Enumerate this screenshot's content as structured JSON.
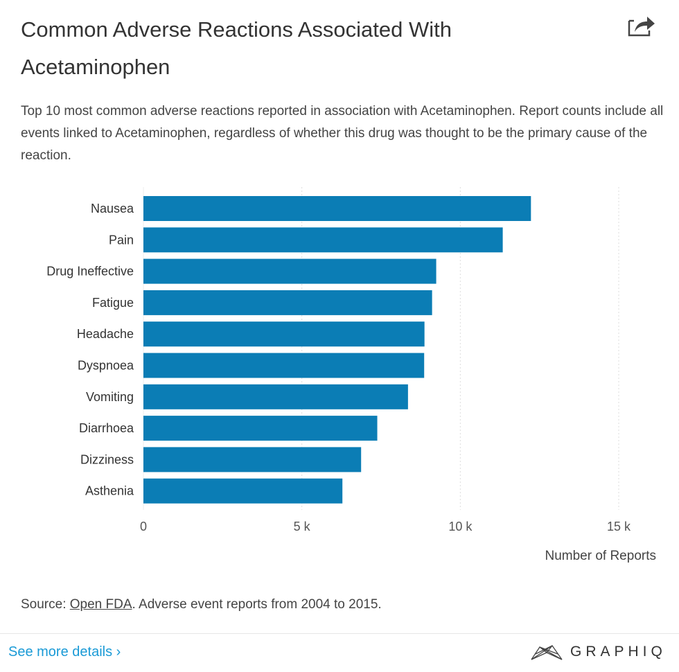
{
  "header": {
    "title": "Common Adverse Reactions Associated With Acetaminophen",
    "share_icon": "share-arrow-icon",
    "description": "Top 10 most common adverse reactions reported in association with Acetaminophen. Report counts include all events linked to Acetaminophen, regardless of whether this drug was thought to be the primary cause of the reaction."
  },
  "chart_data": {
    "type": "bar",
    "orientation": "horizontal",
    "categories": [
      "Nausea",
      "Pain",
      "Drug Ineffective",
      "Fatigue",
      "Headache",
      "Dyspnoea",
      "Vomiting",
      "Diarrhoea",
      "Dizziness",
      "Asthenia"
    ],
    "values": [
      12230,
      11340,
      9240,
      9110,
      8870,
      8860,
      8350,
      7380,
      6870,
      6280
    ],
    "xlabel": "Number of Reports",
    "ylabel": "",
    "xlim": [
      0,
      15000
    ],
    "xticks": [
      0,
      5000,
      10000,
      15000
    ],
    "xtick_labels": [
      "0",
      "5 k",
      "10 k",
      "15 k"
    ],
    "grid": "vertical dotted",
    "bar_color": "#0b7db5"
  },
  "footer": {
    "source_prefix": "Source: ",
    "source_link": "Open FDA",
    "source_suffix": ". Adverse event reports from 2004 to 2015.",
    "more_details": "See more details ›",
    "more_color": "#1a9ad6",
    "logo_text": "GRAPHIQ"
  }
}
